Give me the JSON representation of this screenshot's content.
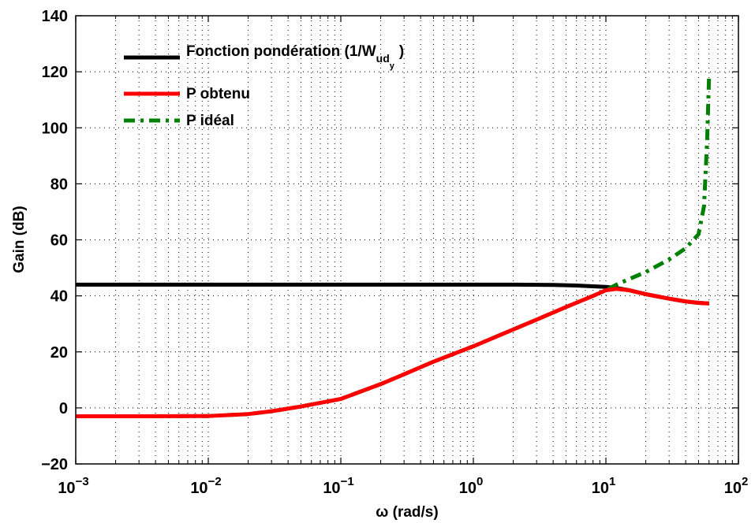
{
  "chart_data": {
    "type": "line",
    "title": "",
    "xlabel": "ω (rad/s)",
    "ylabel": "Gain (dB)",
    "xscale": "log",
    "xlim": [
      0.001,
      100
    ],
    "ylim": [
      -20,
      140
    ],
    "x_ticks": [
      {
        "base": "10",
        "exp": "−3"
      },
      {
        "base": "10",
        "exp": "−2"
      },
      {
        "base": "10",
        "exp": "−1"
      },
      {
        "base": "10",
        "exp": "0"
      },
      {
        "base": "10",
        "exp": "1"
      },
      {
        "base": "10",
        "exp": "2"
      }
    ],
    "y_ticks": [
      "−20",
      "0",
      "20",
      "40",
      "60",
      "80",
      "100",
      "120",
      "140"
    ],
    "grid": true,
    "legend_position": "top-left",
    "legend_ponderation": {
      "prefix": "Fonction pondération (1/W",
      "sub": "ud",
      "subsub": "y",
      "suffix": ")"
    },
    "series": [
      {
        "name": "Fonction pondération (1/W_ud_y)",
        "color": "#000000",
        "style": "solid",
        "x": [
          0.001,
          0.01,
          0.1,
          1,
          2,
          4,
          6,
          8,
          10,
          12,
          15,
          20,
          30,
          40,
          50,
          60
        ],
        "y": [
          44,
          44,
          44,
          44,
          44,
          43.9,
          43.7,
          43.4,
          43.2,
          42.8,
          42,
          40.6,
          39,
          38,
          37.5,
          37.3
        ]
      },
      {
        "name": "P obtenu",
        "color": "#ff0000",
        "style": "solid",
        "x": [
          0.001,
          0.003,
          0.01,
          0.02,
          0.03,
          0.05,
          0.07,
          0.1,
          0.2,
          0.3,
          0.5,
          1,
          2,
          3,
          5,
          8,
          10,
          12,
          15,
          20,
          30,
          40,
          50,
          60
        ],
        "y": [
          -3,
          -3,
          -2.9,
          -2.2,
          -1.2,
          0.5,
          1.8,
          3.2,
          8.5,
          12,
          16.5,
          22,
          28,
          31.5,
          36,
          40,
          42,
          42.5,
          42,
          40.6,
          39,
          38,
          37.5,
          37.3
        ]
      },
      {
        "name": "P idéal",
        "color": "#008000",
        "style": "dashdot",
        "x": [
          0.001,
          0.003,
          0.01,
          0.02,
          0.03,
          0.05,
          0.07,
          0.1,
          0.2,
          0.3,
          0.5,
          1,
          2,
          3,
          5,
          8,
          10,
          12,
          15,
          20,
          30,
          40,
          50,
          55,
          58,
          60
        ],
        "y": [
          -3,
          -3,
          -2.9,
          -2.2,
          -1.2,
          0.5,
          1.8,
          3.2,
          8.5,
          12,
          16.5,
          22,
          28,
          31.5,
          36,
          40,
          42,
          44,
          46,
          48.5,
          53,
          57,
          62,
          72,
          95,
          118
        ]
      }
    ]
  }
}
